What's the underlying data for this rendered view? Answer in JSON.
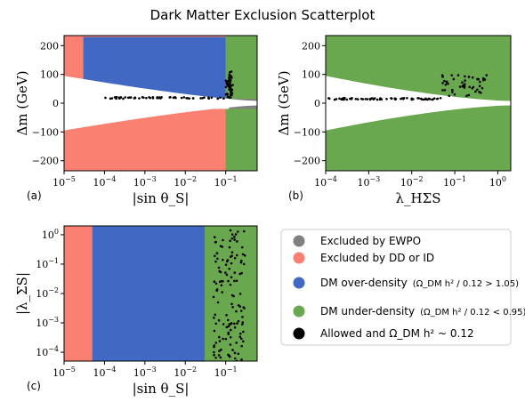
{
  "chart_data": {
    "type": "scatter",
    "title": "Dark Matter Exclusion Scatterplot",
    "legend": {
      "placement": "bottom-right",
      "entries": [
        {
          "key": "ewpo",
          "label": "Excluded by EWPO",
          "color": "#808080"
        },
        {
          "key": "ddid",
          "label": "Excluded by DD or ID",
          "color": "#FA8072"
        },
        {
          "key": "over",
          "label": "DM over-density",
          "math": "(Ω_DM h² / 0.12 > 1.05)",
          "color": "#4169C4"
        },
        {
          "key": "under",
          "label": "DM under-density",
          "math": "(Ω_DM h² / 0.12 < 0.95)",
          "color": "#6AA84F"
        },
        {
          "key": "allowed",
          "label": "Allowed and Ω_DM h² ~ 0.12",
          "color": "#000000"
        }
      ]
    },
    "panels": [
      {
        "tag": "(a)",
        "xlabel": "|sin θ_S|",
        "ylabel": "Δm (GeV)",
        "xscale": "log",
        "yscale": "linear",
        "xlim": [
          1e-05,
          0.6
        ],
        "ylim": [
          -235,
          235
        ],
        "xticks": [
          {
            "v": 1e-05,
            "l": "10",
            "e": "−5"
          },
          {
            "v": 0.0001,
            "l": "10",
            "e": "−4"
          },
          {
            "v": 0.001,
            "l": "10",
            "e": "−3"
          },
          {
            "v": 0.01,
            "l": "10",
            "e": "−2"
          },
          {
            "v": 0.1,
            "l": "10",
            "e": "−1"
          }
        ],
        "yticks": [
          {
            "v": -200,
            "l": "−200"
          },
          {
            "v": -100,
            "l": "−100"
          },
          {
            "v": 0,
            "l": "0"
          },
          {
            "v": 100,
            "l": "100"
          },
          {
            "v": 200,
            "l": "200"
          }
        ],
        "regions": [
          {
            "key": "ewpo",
            "x": [
              0.12,
              0.6
            ],
            "y_upper": [
              0,
              235
            ],
            "y_lower": [
              -235,
              0
            ]
          },
          {
            "key": "ddid",
            "x": [
              1e-05,
              0.3
            ],
            "y_upper": [
              20,
              235
            ],
            "y_lower": [
              -235,
              -20
            ]
          },
          {
            "key": "over",
            "x": [
              3e-05,
              0.1
            ],
            "y_upper": [
              15,
              230
            ]
          },
          {
            "key": "under",
            "x": [
              0.1,
              0.6
            ],
            "y_upper": [
              15,
              235
            ],
            "y_lower": [
              -235,
              -20
            ]
          }
        ],
        "allowed": {
          "x": [
            0.0001,
            0.1,
            0.15
          ],
          "y": [
            18,
            18,
            110
          ]
        }
      },
      {
        "tag": "(b)",
        "xlabel": "λ_HΣS",
        "ylabel": "Δm (GeV)",
        "xscale": "log",
        "yscale": "linear",
        "xlim": [
          0.0001,
          2
        ],
        "ylim": [
          -235,
          235
        ],
        "xticks": [
          {
            "v": 0.0001,
            "l": "10",
            "e": "−4"
          },
          {
            "v": 0.001,
            "l": "10",
            "e": "−3"
          },
          {
            "v": 0.01,
            "l": "10",
            "e": "−2"
          },
          {
            "v": 0.1,
            "l": "10",
            "e": "−1"
          },
          {
            "v": 1,
            "l": "10",
            "e": "0"
          }
        ],
        "yticks": [
          {
            "v": -200,
            "l": "−200"
          },
          {
            "v": -100,
            "l": "−100"
          },
          {
            "v": 0,
            "l": "0"
          },
          {
            "v": 100,
            "l": "100"
          },
          {
            "v": 200,
            "l": "200"
          }
        ],
        "regions": [
          {
            "key": "ddid",
            "x": [
              0.0001,
              2
            ],
            "y_upper": [
              20,
              235
            ],
            "y_lower": [
              -235,
              -20
            ]
          },
          {
            "key": "over",
            "x": [
              0.0001,
              1
            ],
            "y_upper": [
              15,
              230
            ]
          },
          {
            "key": "under",
            "x": [
              0.0001,
              2
            ],
            "y_upper": [
              0,
              235
            ],
            "y_lower": [
              -235,
              0
            ]
          }
        ],
        "allowed": {
          "x": [
            0.0001,
            0.05,
            0.6
          ],
          "y": [
            15,
            25,
            100
          ]
        }
      },
      {
        "tag": "(c)",
        "xlabel": "|sin θ_S|",
        "ylabel": "|λ_ΣS|",
        "xscale": "log",
        "yscale": "log",
        "xlim": [
          1e-05,
          0.6
        ],
        "ylim": [
          5e-05,
          2
        ],
        "xticks": [
          {
            "v": 1e-05,
            "l": "10",
            "e": "−5"
          },
          {
            "v": 0.0001,
            "l": "10",
            "e": "−4"
          },
          {
            "v": 0.001,
            "l": "10",
            "e": "−3"
          },
          {
            "v": 0.01,
            "l": "10",
            "e": "−2"
          },
          {
            "v": 0.1,
            "l": "10",
            "e": "−1"
          }
        ],
        "yticks": [
          {
            "v": 0.0001,
            "l": "10",
            "e": "−4"
          },
          {
            "v": 0.001,
            "l": "10",
            "e": "−3"
          },
          {
            "v": 0.01,
            "l": "10",
            "e": "−2"
          },
          {
            "v": 0.1,
            "l": "10",
            "e": "−1"
          },
          {
            "v": 1,
            "l": "10",
            "e": "0"
          }
        ],
        "regions": [
          {
            "key": "ddid",
            "x": [
              1e-05,
              0.3
            ],
            "y": [
              5e-05,
              2
            ]
          },
          {
            "key": "over",
            "x": [
              5e-05,
              0.05
            ],
            "y": [
              5e-05,
              2
            ]
          },
          {
            "key": "under",
            "x": [
              0.03,
              0.6
            ],
            "y": [
              5e-05,
              2
            ]
          }
        ],
        "allowed": {
          "x": [
            0.05,
            0.3
          ],
          "y": [
            5e-05,
            2
          ]
        }
      }
    ]
  }
}
